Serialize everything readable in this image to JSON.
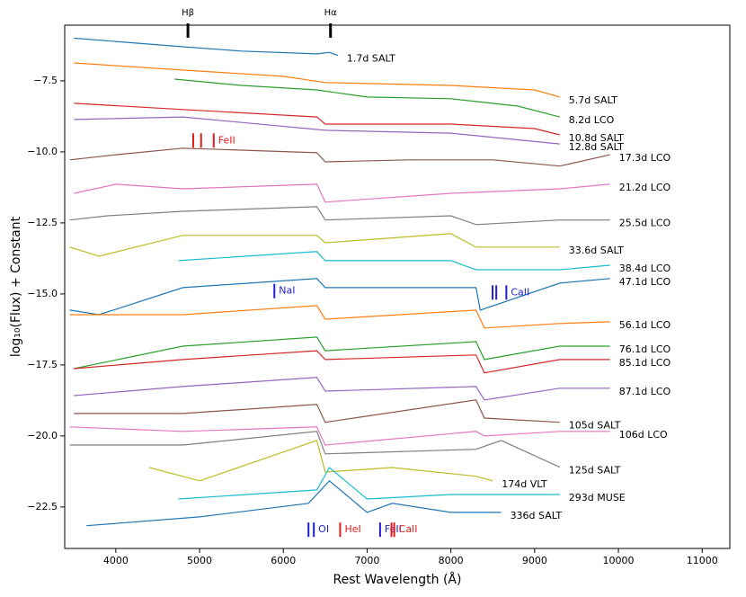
{
  "chart_data": {
    "type": "line",
    "xlabel": "Rest Wavelength (Å)",
    "ylabel": "log₁₀(Flux) + Constant",
    "xlim": [
      3390,
      11330
    ],
    "ylim": [
      -23.96,
      -5.54
    ],
    "xticks": [
      4000,
      5000,
      6000,
      7000,
      8000,
      9000,
      10000,
      11000
    ],
    "yticks": [
      {
        "value": -7.5,
        "label": "−7.5"
      },
      {
        "value": -10,
        "label": "−10.0"
      },
      {
        "value": -12.5,
        "label": "−12.5"
      },
      {
        "value": -15,
        "label": "−15.0"
      },
      {
        "value": -17.5,
        "label": "−17.5"
      },
      {
        "value": -20,
        "label": "−20.0"
      },
      {
        "value": -22.5,
        "label": "−22.5"
      }
    ],
    "top_lines": [
      {
        "label": "Hβ",
        "x": 4861
      },
      {
        "label": "Hα",
        "x": 6563
      }
    ],
    "markers": [
      {
        "label": "FeII",
        "color": "#e41a1c",
        "lines": [
          4924,
          5018,
          5169
        ],
        "y": -9.6
      },
      {
        "label": "NaI",
        "color": "#1f1fd0",
        "lines": [
          5893
        ],
        "y": -14.9
      },
      {
        "label": "CaII",
        "color": "#1f1fd0",
        "lines": [
          8498,
          8542,
          8662
        ],
        "y": -14.95
      },
      {
        "label": "OI",
        "color": "#1f1fd0",
        "lines": [
          6300,
          6364
        ],
        "y": -23.3
      },
      {
        "label": "HeI",
        "color": "#e41a1c",
        "lines": [
          6678
        ],
        "y": -23.3
      },
      {
        "label": "FeII",
        "color": "#1f1fd0",
        "lines": [
          7155
        ],
        "y": -23.3
      },
      {
        "label": "CaII",
        "color": "#e41a1c",
        "lines": [
          7291,
          7324
        ],
        "y": -23.3
      }
    ],
    "series": [
      {
        "name": "1.7d SALT",
        "color": "#1f77b4",
        "x": [
          3500,
          4800,
          5500,
          6400,
          6550,
          6650
        ],
        "values": [
          -6.0,
          -6.3,
          -6.45,
          -6.55,
          -6.5,
          -6.6
        ]
      },
      {
        "name": "5.7d SALT",
        "color": "#ff7f0e",
        "x": [
          3500,
          4800,
          6000,
          6500,
          8000,
          9000,
          9300
        ],
        "values": [
          -6.87,
          -7.12,
          -7.34,
          -7.56,
          -7.66,
          -7.82,
          -8.07
        ]
      },
      {
        "name": "8.2d LCO",
        "color": "#2ca02c",
        "x": [
          4700,
          5500,
          6400,
          7000,
          8000,
          8800,
          9300
        ],
        "values": [
          -7.44,
          -7.66,
          -7.82,
          -8.07,
          -8.13,
          -8.39,
          -8.77
        ]
      },
      {
        "name": "10.8d SALT",
        "color": "#d62728",
        "x": [
          3500,
          4800,
          6400,
          6500,
          8000,
          9000,
          9300
        ],
        "values": [
          -8.29,
          -8.51,
          -8.77,
          -9.02,
          -9.02,
          -9.18,
          -9.4
        ]
      },
      {
        "name": "12.8d SALT",
        "color": "#9467bd",
        "x": [
          3500,
          4800,
          6500,
          8000,
          9300
        ],
        "values": [
          -8.86,
          -8.77,
          -9.24,
          -9.34,
          -9.72
        ]
      },
      {
        "name": "17.3d LCO",
        "color": "#8c564b",
        "x": [
          3450,
          4000,
          4800,
          6400,
          6500,
          7500,
          8500,
          9300,
          9900
        ],
        "values": [
          -10.28,
          -10.1,
          -9.87,
          -10.03,
          -10.35,
          -10.28,
          -10.28,
          -10.5,
          -10.1
        ]
      },
      {
        "name": "21.2d LCO",
        "color": "#e377c2",
        "x": [
          3500,
          4000,
          4800,
          6400,
          6500,
          8000,
          9300,
          9900
        ],
        "values": [
          -11.46,
          -11.14,
          -11.3,
          -11.14,
          -11.77,
          -11.46,
          -11.3,
          -11.14
        ]
      },
      {
        "name": "25.5d LCO",
        "color": "#7f7f7f",
        "x": [
          3450,
          3900,
          4800,
          6400,
          6500,
          8000,
          8300,
          9300,
          9900
        ],
        "values": [
          -12.4,
          -12.25,
          -12.09,
          -11.93,
          -12.4,
          -12.25,
          -12.56,
          -12.4,
          -12.4
        ]
      },
      {
        "name": "33.6d SALT",
        "color": "#bcbd22",
        "x": [
          3450,
          3800,
          4800,
          6400,
          6500,
          8000,
          8300,
          9300
        ],
        "values": [
          -13.35,
          -13.67,
          -12.94,
          -12.94,
          -13.2,
          -12.88,
          -13.35,
          -13.35
        ]
      },
      {
        "name": "38.4d LCO",
        "color": "#17becf",
        "x": [
          4750,
          6400,
          6500,
          8000,
          8300,
          9300,
          9900
        ],
        "values": [
          -13.83,
          -13.51,
          -13.83,
          -13.83,
          -14.15,
          -14.15,
          -13.99
        ]
      },
      {
        "name": "47.1d LCO",
        "color": "#1f77b4",
        "x": [
          3450,
          3800,
          4800,
          6400,
          6500,
          8300,
          8350,
          9300,
          9900
        ],
        "values": [
          -15.57,
          -15.73,
          -14.78,
          -14.46,
          -14.78,
          -14.78,
          -15.57,
          -14.62,
          -14.46
        ]
      },
      {
        "name": "56.1d LCO",
        "color": "#ff7f0e",
        "x": [
          3450,
          4800,
          6400,
          6500,
          8300,
          8400,
          9300,
          9900
        ],
        "values": [
          -15.73,
          -15.73,
          -15.41,
          -15.89,
          -15.57,
          -16.2,
          -16.04,
          -15.98
        ]
      },
      {
        "name": "76.1d LCO",
        "color": "#2ca02c",
        "x": [
          3500,
          4800,
          6400,
          6500,
          8300,
          8400,
          9300,
          9900
        ],
        "values": [
          -17.63,
          -16.84,
          -16.52,
          -17.0,
          -16.68,
          -17.31,
          -16.84,
          -16.84
        ]
      },
      {
        "name": "85.1d LCO",
        "color": "#d62728",
        "x": [
          3500,
          4800,
          6400,
          6500,
          8300,
          8400,
          9300,
          9900
        ],
        "values": [
          -17.63,
          -17.31,
          -17.0,
          -17.31,
          -17.15,
          -17.78,
          -17.31,
          -17.31
        ]
      },
      {
        "name": "87.1d LCO",
        "color": "#9467bd",
        "x": [
          3500,
          4800,
          6400,
          6500,
          8300,
          8400,
          9300,
          9900
        ],
        "values": [
          -18.58,
          -18.26,
          -17.94,
          -18.42,
          -18.26,
          -18.73,
          -18.32,
          -18.32
        ]
      },
      {
        "name": "105d SALT",
        "color": "#8c564b",
        "x": [
          3500,
          4800,
          6400,
          6500,
          8300,
          8400,
          9300
        ],
        "values": [
          -19.21,
          -19.21,
          -18.89,
          -19.52,
          -18.73,
          -19.37,
          -19.52
        ]
      },
      {
        "name": "106d LCO",
        "color": "#e377c2",
        "x": [
          3450,
          4800,
          6400,
          6500,
          8300,
          8400,
          9300,
          9900
        ],
        "values": [
          -19.68,
          -19.84,
          -19.68,
          -20.32,
          -19.84,
          -20.0,
          -19.84,
          -19.84
        ]
      },
      {
        "name": "125d SALT",
        "color": "#7f7f7f",
        "x": [
          3450,
          4800,
          6400,
          6500,
          8300,
          8600,
          9300
        ],
        "values": [
          -20.32,
          -20.32,
          -19.84,
          -20.63,
          -20.47,
          -20.16,
          -21.1
        ]
      },
      {
        "name": "174d VLT",
        "color": "#bcbd22",
        "x": [
          4400,
          5000,
          6400,
          6500,
          7300,
          8300,
          8500
        ],
        "values": [
          -21.11,
          -21.58,
          -20.16,
          -21.27,
          -21.11,
          -21.42,
          -21.58
        ]
      },
      {
        "name": "293d MUSE",
        "color": "#17becf",
        "x": [
          4750,
          6400,
          6550,
          7000,
          8000,
          9300
        ],
        "values": [
          -22.22,
          -21.9,
          -21.11,
          -22.22,
          -22.06,
          -22.06
        ]
      },
      {
        "name": "336d SALT",
        "color": "#1f77b4",
        "x": [
          3650,
          5000,
          6300,
          6550,
          7000,
          7300,
          8000,
          8600
        ],
        "values": [
          -23.16,
          -22.85,
          -22.37,
          -21.58,
          -22.69,
          -22.37,
          -22.69,
          -22.69
        ]
      }
    ]
  }
}
